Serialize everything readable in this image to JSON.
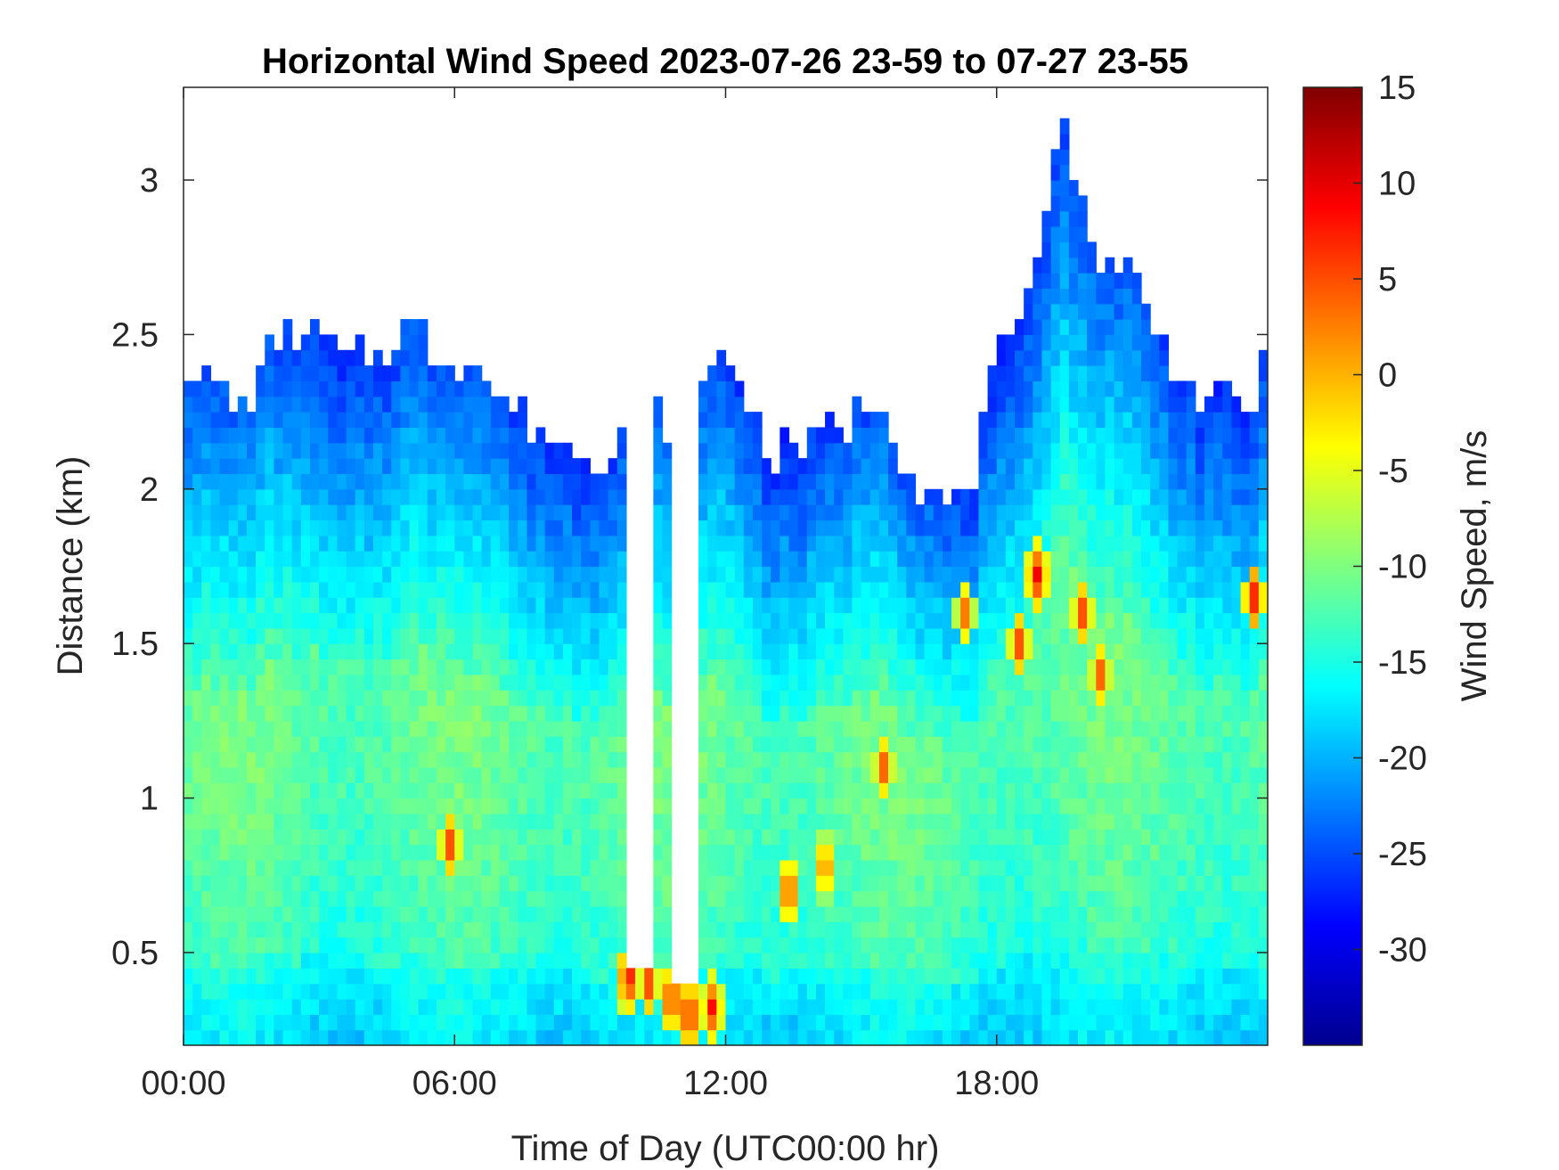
{
  "chart_data": {
    "type": "heatmap",
    "title": "Horizontal Wind Speed 2023-07-26 23-59 to 07-27 23-55",
    "xlabel": "Time of Day (UTC00:00 hr)",
    "ylabel": "Distance (km)",
    "x_unit": "hours",
    "xlim": [
      0,
      24
    ],
    "ylim": [
      0.2,
      3.3
    ],
    "x_ticks": [
      {
        "value": 0,
        "label": "00:00"
      },
      {
        "value": 6,
        "label": "06:00"
      },
      {
        "value": 12,
        "label": "12:00"
      },
      {
        "value": 18,
        "label": "18:00"
      }
    ],
    "y_ticks": [
      {
        "value": 0.5,
        "label": "0.5"
      },
      {
        "value": 1,
        "label": "1"
      },
      {
        "value": 1.5,
        "label": "1.5"
      },
      {
        "value": 2,
        "label": "2"
      },
      {
        "value": 2.5,
        "label": "2.5"
      },
      {
        "value": 3,
        "label": "3"
      }
    ],
    "colorbar": {
      "label": "Wind Speed, m/s",
      "colormap": "jet",
      "clim": [
        -35,
        15
      ],
      "ticks": [
        {
          "value": 15,
          "label": "15"
        },
        {
          "value": 10,
          "label": "10"
        },
        {
          "value": 5,
          "label": "5"
        },
        {
          "value": 0,
          "label": "0"
        },
        {
          "value": -5,
          "label": "-5"
        },
        {
          "value": -10,
          "label": "-10"
        },
        {
          "value": -15,
          "label": "-15"
        },
        {
          "value": -20,
          "label": "-20"
        },
        {
          "value": -25,
          "label": "-25"
        },
        {
          "value": -30,
          "label": "-30"
        }
      ]
    },
    "data_top_km": [
      {
        "t": 0.0,
        "top": 2.42
      },
      {
        "t": 0.5,
        "top": 2.35
      },
      {
        "t": 1.0,
        "top": 2.28
      },
      {
        "t": 1.5,
        "top": 2.3
      },
      {
        "t": 2.0,
        "top": 2.48
      },
      {
        "t": 2.5,
        "top": 2.52
      },
      {
        "t": 3.0,
        "top": 2.5
      },
      {
        "t": 3.5,
        "top": 2.42
      },
      {
        "t": 4.0,
        "top": 2.45
      },
      {
        "t": 4.5,
        "top": 2.45
      },
      {
        "t": 5.0,
        "top": 2.55
      },
      {
        "t": 5.5,
        "top": 2.45
      },
      {
        "t": 6.0,
        "top": 2.42
      },
      {
        "t": 6.5,
        "top": 2.4
      },
      {
        "t": 7.0,
        "top": 2.3
      },
      {
        "t": 7.5,
        "top": 2.25
      },
      {
        "t": 8.0,
        "top": 2.18
      },
      {
        "t": 8.5,
        "top": 2.15
      },
      {
        "t": 9.0,
        "top": 2.1
      },
      {
        "t": 9.5,
        "top": 2.15
      },
      {
        "t": 10.0,
        "top": 2.2
      },
      {
        "t": 10.5,
        "top": 2.25
      },
      {
        "t": 11.0,
        "top": 2.15
      },
      {
        "t": 11.5,
        "top": 2.3
      },
      {
        "t": 12.0,
        "top": 2.45
      },
      {
        "t": 12.5,
        "top": 2.3
      },
      {
        "t": 13.0,
        "top": 2.1
      },
      {
        "t": 13.5,
        "top": 2.15
      },
      {
        "t": 14.0,
        "top": 2.15
      },
      {
        "t": 14.5,
        "top": 2.2
      },
      {
        "t": 15.0,
        "top": 2.25
      },
      {
        "t": 15.5,
        "top": 2.3
      },
      {
        "t": 16.0,
        "top": 2.05
      },
      {
        "t": 16.5,
        "top": 2.0
      },
      {
        "t": 17.0,
        "top": 1.95
      },
      {
        "t": 17.5,
        "top": 2.05
      },
      {
        "t": 18.0,
        "top": 2.4
      },
      {
        "t": 18.5,
        "top": 2.5
      },
      {
        "t": 19.0,
        "top": 2.9
      },
      {
        "t": 19.5,
        "top": 3.2
      },
      {
        "t": 20.0,
        "top": 2.8
      },
      {
        "t": 20.5,
        "top": 2.75
      },
      {
        "t": 21.0,
        "top": 2.7
      },
      {
        "t": 21.5,
        "top": 2.5
      },
      {
        "t": 22.0,
        "top": 2.4
      },
      {
        "t": 22.5,
        "top": 2.3
      },
      {
        "t": 23.0,
        "top": 2.3
      },
      {
        "t": 23.5,
        "top": 2.25
      },
      {
        "t": 24.0,
        "top": 2.4
      }
    ],
    "gaps": [
      {
        "t_start": 9.9,
        "t_end": 10.4,
        "bottom_km": 0.45
      },
      {
        "t_start": 10.8,
        "t_end": 11.3,
        "bottom_km": 0.4
      }
    ],
    "hot_spots": [
      {
        "t": 5.9,
        "km": 0.85,
        "value": 8
      },
      {
        "t": 9.85,
        "km": 0.42,
        "value": 10
      },
      {
        "t": 10.3,
        "km": 0.4,
        "value": 8
      },
      {
        "t": 10.8,
        "km": 0.35,
        "value": 9
      },
      {
        "t": 11.2,
        "km": 0.3,
        "value": 10
      },
      {
        "t": 11.7,
        "km": 0.32,
        "value": 9
      },
      {
        "t": 13.4,
        "km": 0.7,
        "value": 8
      },
      {
        "t": 14.2,
        "km": 0.78,
        "value": 6
      },
      {
        "t": 15.5,
        "km": 1.1,
        "value": 7
      },
      {
        "t": 17.3,
        "km": 1.6,
        "value": 6
      },
      {
        "t": 18.5,
        "km": 1.5,
        "value": 8
      },
      {
        "t": 18.9,
        "km": 1.72,
        "value": 10
      },
      {
        "t": 19.9,
        "km": 1.6,
        "value": 8
      },
      {
        "t": 20.3,
        "km": 1.4,
        "value": 7
      },
      {
        "t": 23.7,
        "km": 1.65,
        "value": 10
      }
    ]
  }
}
